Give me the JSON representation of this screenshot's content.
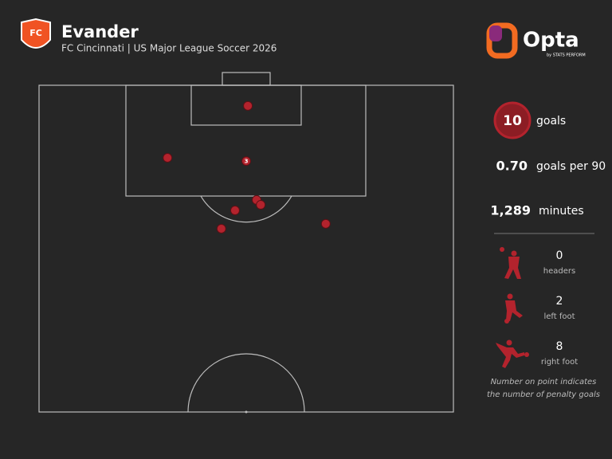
{
  "chart_data": {
    "type": "scatter",
    "title": "Evander",
    "subtitle": "FC Cincinnati | US Major League Soccer 2026",
    "brand": "Opta",
    "brand_sub": "by STATS PERFORM",
    "badge": "FC",
    "color": "#b3232d",
    "xlim": [
      0,
      100
    ],
    "ylim": [
      0,
      100
    ],
    "points": [
      {
        "x": 50.4,
        "y": 6.3
      },
      {
        "x": 31.0,
        "y": 22.2
      },
      {
        "x": 50.0,
        "y": 23.2,
        "label": 3
      },
      {
        "x": 52.5,
        "y": 35.1
      },
      {
        "x": 53.5,
        "y": 36.6
      },
      {
        "x": 47.3,
        "y": 38.3
      },
      {
        "x": 44.0,
        "y": 43.9
      },
      {
        "x": 69.2,
        "y": 42.4
      }
    ],
    "stats": {
      "goals": {
        "value": 10,
        "label": "goals"
      },
      "per90": {
        "value": "0.70",
        "label": "goals per 90"
      },
      "minutes": {
        "value": "1,289",
        "label": "minutes"
      }
    },
    "breakdown": [
      {
        "value": 0,
        "label": "headers"
      },
      {
        "value": 2,
        "label": "left foot"
      },
      {
        "value": 8,
        "label": "right foot"
      }
    ],
    "note": [
      "Number on point indicates",
      "the number of penalty goals"
    ]
  }
}
